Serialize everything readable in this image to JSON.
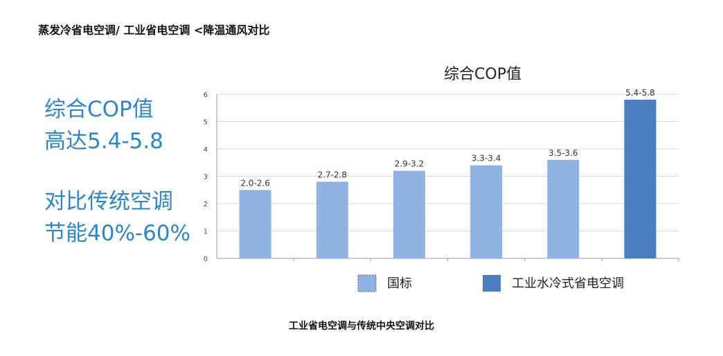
{
  "page_title": "蒸发冷省电空调/ 工业省电空调 <降温通风对比",
  "highlight": {
    "line1": "综合COP值",
    "line2": "高达5.4-5.8",
    "line3": "对比传统空调",
    "line4": "节能40%-60%"
  },
  "caption": "工业省电空调与传统中央空调对比",
  "chart_data": {
    "type": "bar",
    "title": "综合COP值",
    "xlabel": "",
    "ylabel": "",
    "ylim": [
      0,
      6
    ],
    "yticks": [
      0,
      1,
      2,
      3,
      4,
      5,
      6
    ],
    "grid": true,
    "legend": "bottom",
    "bars": [
      {
        "value": 2.5,
        "label": "2.0-2.6",
        "series": 0
      },
      {
        "value": 2.8,
        "label": "2.7-2.8",
        "series": 0
      },
      {
        "value": 3.2,
        "label": "2.9-3.2",
        "series": 0
      },
      {
        "value": 3.4,
        "label": "3.3-3.4",
        "series": 0
      },
      {
        "value": 3.6,
        "label": "3.5-3.6",
        "series": 0
      },
      {
        "value": 5.8,
        "label": "5.4-5.8",
        "series": 1
      }
    ],
    "series": [
      {
        "name": "国标",
        "color": "#8fb4e3"
      },
      {
        "name": "工业水冷式省电空调",
        "color": "#4a7ebf"
      }
    ]
  }
}
